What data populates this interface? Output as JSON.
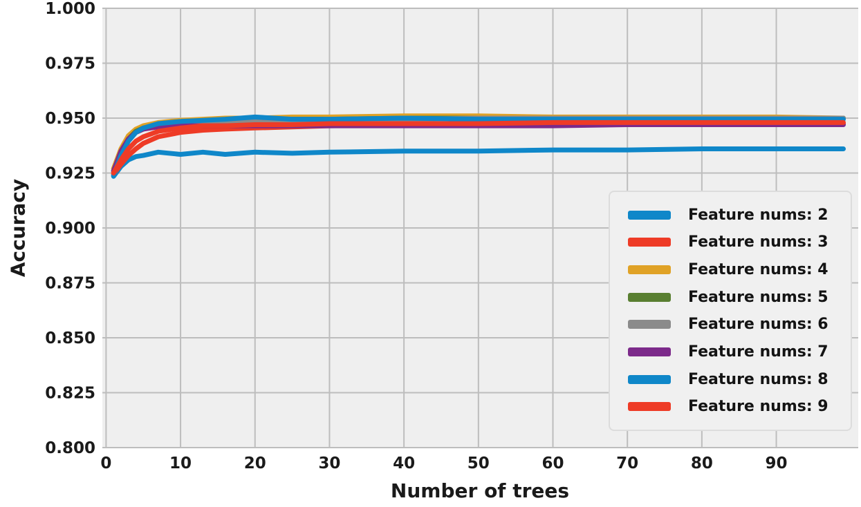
{
  "figure": {
    "background": "#ffffff",
    "plot_background": "#efefef",
    "grid_color": "#bdbdbd",
    "text_color": "#1a1a1a"
  },
  "chart_data": {
    "type": "line",
    "title": "",
    "xlabel": "Number of trees",
    "ylabel": "Accuracy",
    "xlim": [
      -0.5,
      101
    ],
    "ylim": [
      0.8,
      1.0
    ],
    "xticks": [
      0,
      10,
      20,
      30,
      40,
      50,
      60,
      70,
      80,
      90
    ],
    "ytick_labels": [
      "0.800",
      "0.825",
      "0.850",
      "0.875",
      "0.900",
      "0.925",
      "0.950",
      "0.975",
      "1.000"
    ],
    "grid": true,
    "line_width": 7,
    "legend": {
      "position": "lower right",
      "background": "#f0f0f0",
      "border_color": "#dcdcdc"
    },
    "x": [
      1,
      2,
      3,
      4,
      5,
      7,
      10,
      13,
      16,
      20,
      25,
      30,
      40,
      50,
      60,
      70,
      80,
      90,
      99
    ],
    "series": [
      {
        "name": "Feature nums: 2",
        "color": "#0f87c9",
        "values": [
          0.9235,
          0.928,
          0.931,
          0.9325,
          0.933,
          0.9345,
          0.9335,
          0.9345,
          0.9335,
          0.9345,
          0.934,
          0.9345,
          0.935,
          0.935,
          0.9355,
          0.9355,
          0.936,
          0.936,
          0.936
        ]
      },
      {
        "name": "Feature nums: 3",
        "color": "#ee3b26",
        "values": [
          0.9245,
          0.929,
          0.933,
          0.936,
          0.9385,
          0.9415,
          0.9435,
          0.9445,
          0.945,
          0.9455,
          0.946,
          0.9465,
          0.947,
          0.947,
          0.9475,
          0.9475,
          0.9475,
          0.9475,
          0.9475
        ]
      },
      {
        "name": "Feature nums: 4",
        "color": "#e0a226",
        "values": [
          0.927,
          0.936,
          0.942,
          0.945,
          0.9465,
          0.948,
          0.949,
          0.9495,
          0.95,
          0.95,
          0.9505,
          0.9505,
          0.951,
          0.951,
          0.9505,
          0.9505,
          0.9505,
          0.9505,
          0.95
        ]
      },
      {
        "name": "Feature nums: 5",
        "color": "#597f31",
        "values": [
          0.926,
          0.9345,
          0.9405,
          0.944,
          0.9455,
          0.947,
          0.948,
          0.9485,
          0.949,
          0.9495,
          0.9495,
          0.9495,
          0.95,
          0.95,
          0.95,
          0.95,
          0.95,
          0.95,
          0.95
        ]
      },
      {
        "name": "Feature nums: 6",
        "color": "#8b8b8b",
        "values": [
          0.9255,
          0.934,
          0.94,
          0.9435,
          0.945,
          0.9465,
          0.9475,
          0.948,
          0.9485,
          0.949,
          0.949,
          0.9495,
          0.9495,
          0.95,
          0.95,
          0.95,
          0.95,
          0.95,
          0.95
        ]
      },
      {
        "name": "Feature nums: 7",
        "color": "#7c2a8a",
        "values": [
          0.926,
          0.935,
          0.9405,
          0.9435,
          0.945,
          0.946,
          0.9465,
          0.9465,
          0.9465,
          0.9465,
          0.9465,
          0.9465,
          0.9465,
          0.9465,
          0.9465,
          0.947,
          0.947,
          0.947,
          0.947
        ]
      },
      {
        "name": "Feature nums: 8",
        "color": "#0f87c9",
        "values": [
          0.924,
          0.933,
          0.9395,
          0.9435,
          0.9455,
          0.9475,
          0.9485,
          0.949,
          0.9495,
          0.9505,
          0.9495,
          0.9495,
          0.95,
          0.9495,
          0.9495,
          0.9495,
          0.9495,
          0.9495,
          0.9495
        ]
      },
      {
        "name": "Feature nums: 9",
        "color": "#ee3b26",
        "values": [
          0.925,
          0.931,
          0.936,
          0.9395,
          0.9415,
          0.944,
          0.9455,
          0.9465,
          0.9465,
          0.947,
          0.947,
          0.9475,
          0.9475,
          0.9475,
          0.948,
          0.948,
          0.948,
          0.948,
          0.948
        ]
      }
    ]
  }
}
